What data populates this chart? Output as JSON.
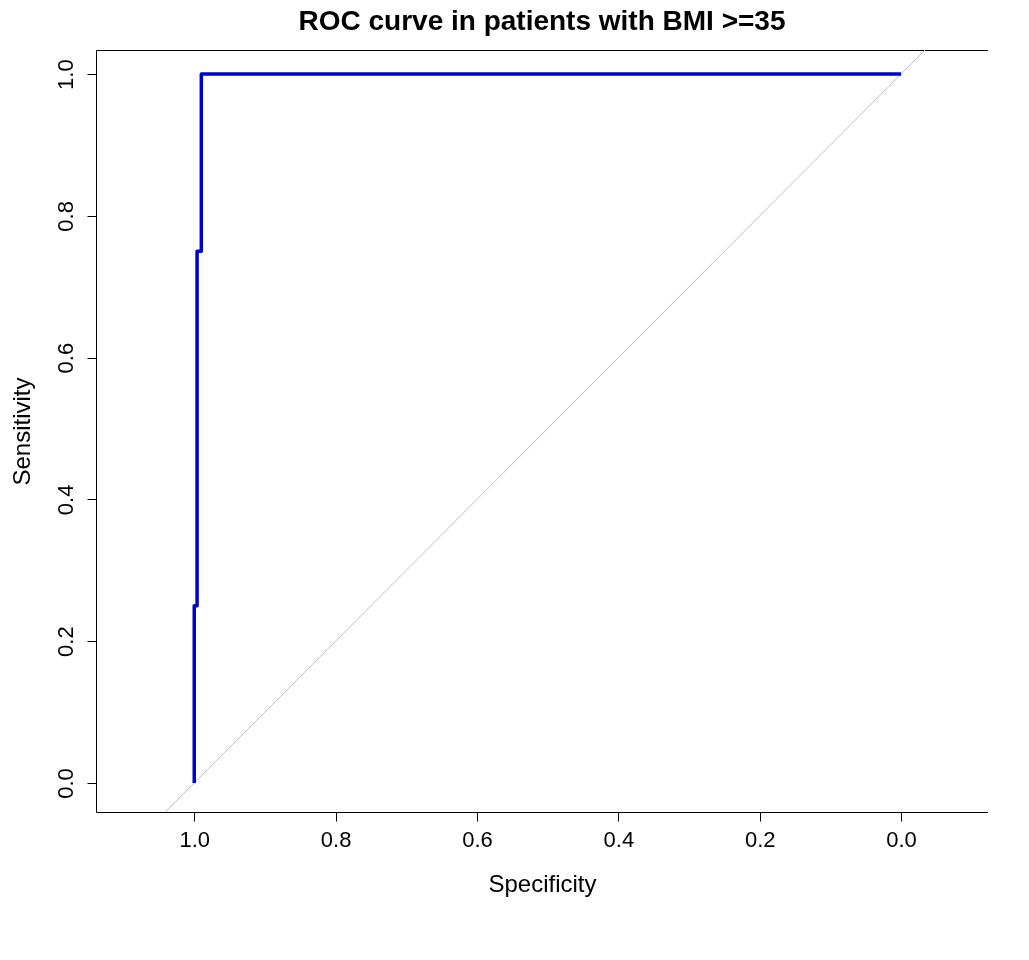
{
  "chart_data": {
    "type": "line",
    "title": "ROC curve in patients with BMI >=35",
    "xlabel": "Specificity",
    "ylabel": "Sensitivity",
    "xlim": [
      1.139,
      -0.123
    ],
    "ylim": [
      -0.041,
      1.034
    ],
    "xticks": [
      {
        "value": 1,
        "label": "1.0"
      },
      0.8,
      0.6,
      0.4,
      0.2,
      {
        "value": 0,
        "label": "0.0"
      }
    ],
    "yticks": [
      {
        "value": 0,
        "label": "0.0"
      },
      0.2,
      0.4,
      0.6,
      0.8,
      {
        "value": 1,
        "label": "1.0"
      }
    ],
    "grid": false,
    "marker": "none",
    "line_style": "solid",
    "series": [
      {
        "color": "#c0c0c0",
        "x": [
          1.041,
          -0.034
        ],
        "values": [
          -0.041,
          1.034
        ]
      },
      {
        "color": "#0000cd",
        "x": [
          1.0,
          1.0,
          0.996,
          0.996,
          0.99,
          0.99,
          0.0
        ],
        "values": [
          0,
          0.25,
          0.25,
          0.75,
          0.75,
          1.0,
          1.0
        ]
      }
    ]
  }
}
